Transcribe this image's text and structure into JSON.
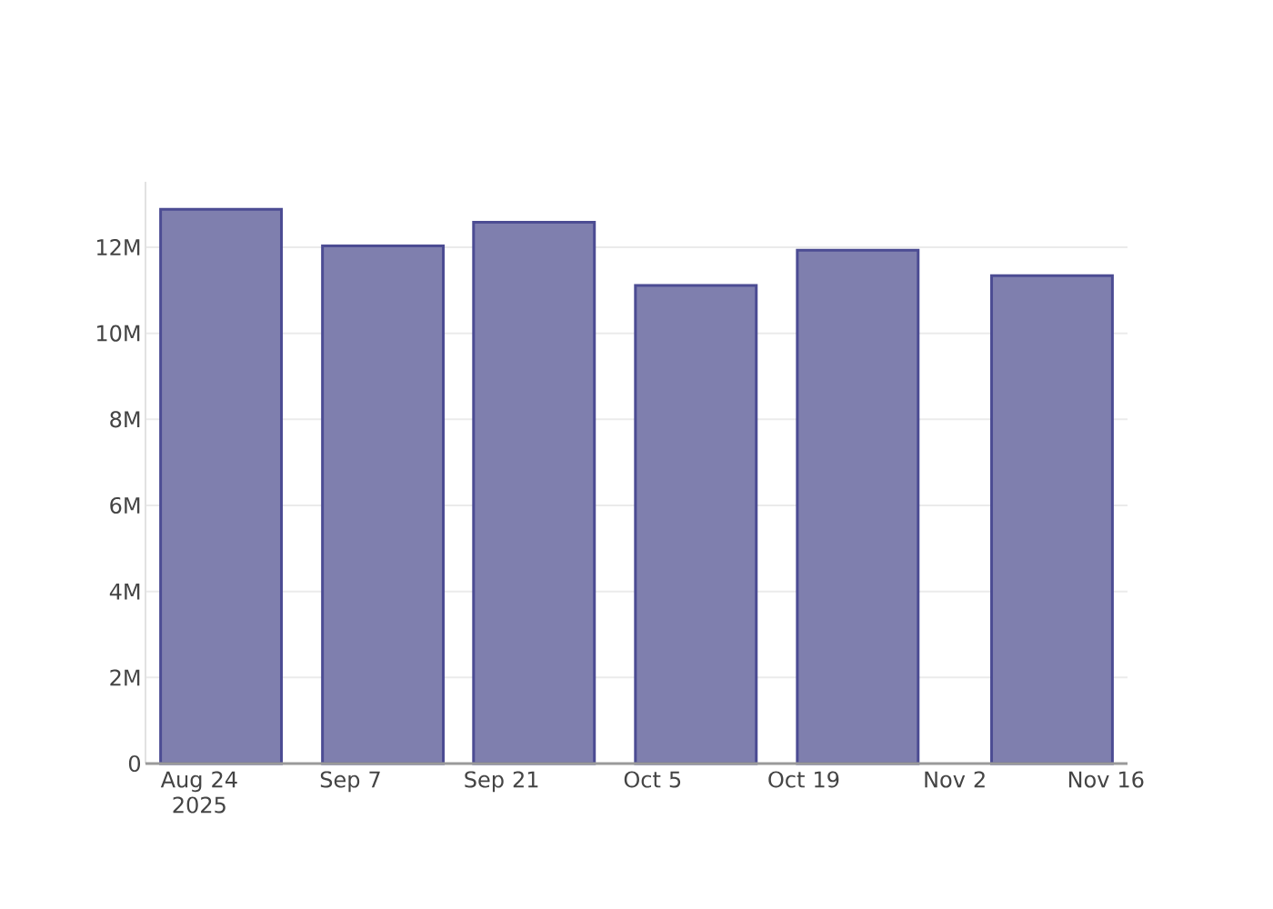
{
  "chart_data": {
    "type": "bar",
    "x": [
      "2025-08-26",
      "2025-09-10",
      "2025-09-24",
      "2025-10-09",
      "2025-10-24",
      "2025-11-11"
    ],
    "values": [
      12880000,
      12030000,
      12580000,
      11110000,
      11930000,
      11340000
    ],
    "color": "#7f7fae",
    "xlim": [
      "2025-08-19",
      "2025-11-18"
    ],
    "xticks": [
      {
        "value": "2025-08-24",
        "label": "Aug 24 2025"
      },
      {
        "value": "2025-09-07",
        "label": "Sep 7"
      },
      {
        "value": "2025-09-21",
        "label": "Sep 21"
      },
      {
        "value": "2025-10-05",
        "label": "Oct 5"
      },
      {
        "value": "2025-10-19",
        "label": "Oct 19"
      },
      {
        "value": "2025-11-02",
        "label": "Nov 2"
      },
      {
        "value": "2025-11-16",
        "label": "Nov 16"
      }
    ],
    "ylim": [
      0,
      13520000
    ],
    "yticks": [
      0,
      {
        "value": 2000000,
        "label": "2M"
      },
      {
        "value": 4000000,
        "label": "4M"
      },
      {
        "value": 6000000,
        "label": "6M"
      },
      {
        "value": 8000000,
        "label": "8M"
      },
      {
        "value": 10000000,
        "label": "10M"
      },
      {
        "value": 12000000,
        "label": "12M"
      }
    ],
    "grid": "y"
  }
}
